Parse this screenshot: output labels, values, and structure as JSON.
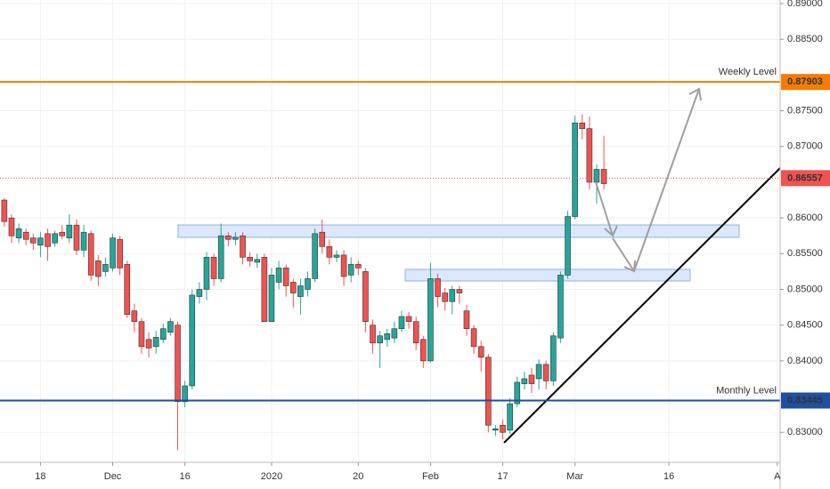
{
  "chart_data": {
    "type": "candlestick",
    "open": [
      0.8625,
      0.86,
      0.8572,
      0.858,
      0.8572,
      0.8562,
      0.8578,
      0.8565,
      0.858,
      0.8572,
      0.859,
      0.8555,
      0.8578,
      0.854,
      0.8525,
      0.853,
      0.857,
      0.8535,
      0.847,
      0.8455,
      0.843,
      0.842,
      0.843,
      0.844,
      0.845,
      0.8343,
      0.8365,
      0.849,
      0.85,
      0.8545,
      0.8515,
      0.8575,
      0.857,
      0.8575,
      0.8545,
      0.8538,
      0.8545,
      0.8455,
      0.851,
      0.853,
      0.851,
      0.849,
      0.85,
      0.8515,
      0.858,
      0.856,
      0.8545,
      0.8548,
      0.852,
      0.8535,
      0.8525,
      0.845,
      0.8425,
      0.843,
      0.8432,
      0.8445,
      0.8462,
      0.8455,
      0.843,
      0.84,
      0.8515,
      0.8495,
      0.8483,
      0.85,
      0.847,
      0.8445,
      0.842,
      0.8405,
      0.8303,
      0.831,
      0.8303,
      0.834,
      0.8368,
      0.838,
      0.8375,
      0.8395,
      0.8372,
      0.8432,
      0.852,
      0.8602,
      0.8733,
      0.8725,
      0.865,
      0.8668
    ],
    "high": [
      0.8628,
      0.8605,
      0.8592,
      0.8585,
      0.8578,
      0.858,
      0.8585,
      0.8582,
      0.859,
      0.8605,
      0.8598,
      0.859,
      0.8582,
      0.8548,
      0.8545,
      0.8578,
      0.8575,
      0.854,
      0.848,
      0.846,
      0.844,
      0.8442,
      0.8452,
      0.846,
      0.8455,
      0.8372,
      0.85,
      0.851,
      0.8552,
      0.855,
      0.8592,
      0.858,
      0.858,
      0.858,
      0.8552,
      0.855,
      0.855,
      0.853,
      0.854,
      0.8535,
      0.8515,
      0.8515,
      0.8525,
      0.8585,
      0.8598,
      0.857,
      0.8555,
      0.8555,
      0.8545,
      0.854,
      0.853,
      0.8458,
      0.8442,
      0.8445,
      0.8455,
      0.847,
      0.8468,
      0.8462,
      0.8435,
      0.8537,
      0.8522,
      0.8502,
      0.8505,
      0.8505,
      0.8478,
      0.845,
      0.8428,
      0.841,
      0.831,
      0.8318,
      0.8348,
      0.8378,
      0.8385,
      0.839,
      0.8402,
      0.84,
      0.844,
      0.8525,
      0.861,
      0.8743,
      0.8745,
      0.8742,
      0.8675,
      0.8715
    ],
    "low": [
      0.8588,
      0.8565,
      0.8565,
      0.8562,
      0.8555,
      0.8545,
      0.854,
      0.856,
      0.857,
      0.8565,
      0.8548,
      0.8545,
      0.8512,
      0.8505,
      0.8518,
      0.8525,
      0.852,
      0.846,
      0.844,
      0.841,
      0.8405,
      0.841,
      0.8425,
      0.8435,
      0.8275,
      0.8335,
      0.836,
      0.848,
      0.8485,
      0.8505,
      0.851,
      0.856,
      0.8562,
      0.8535,
      0.8532,
      0.853,
      0.8455,
      0.8455,
      0.85,
      0.849,
      0.8475,
      0.8465,
      0.849,
      0.851,
      0.855,
      0.8535,
      0.8538,
      0.8505,
      0.851,
      0.852,
      0.844,
      0.841,
      0.839,
      0.842,
      0.8425,
      0.844,
      0.8445,
      0.8415,
      0.839,
      0.8398,
      0.8475,
      0.847,
      0.8465,
      0.848,
      0.8435,
      0.841,
      0.8385,
      0.83,
      0.8295,
      0.829,
      0.8298,
      0.8335,
      0.836,
      0.8355,
      0.836,
      0.836,
      0.8365,
      0.8425,
      0.8515,
      0.8598,
      0.871,
      0.864,
      0.862,
      0.864
    ],
    "close": [
      0.8595,
      0.8575,
      0.8585,
      0.857,
      0.8565,
      0.8572,
      0.856,
      0.8578,
      0.8575,
      0.859,
      0.8555,
      0.858,
      0.852,
      0.8518,
      0.8535,
      0.8572,
      0.853,
      0.8465,
      0.8455,
      0.842,
      0.8418,
      0.8433,
      0.8445,
      0.8455,
      0.8343,
      0.8365,
      0.8492,
      0.85,
      0.8545,
      0.8515,
      0.8575,
      0.857,
      0.8573,
      0.8545,
      0.854,
      0.8542,
      0.8455,
      0.852,
      0.853,
      0.8505,
      0.8495,
      0.8505,
      0.8515,
      0.8578,
      0.856,
      0.8545,
      0.8548,
      0.8518,
      0.8535,
      0.853,
      0.8455,
      0.8425,
      0.8435,
      0.8438,
      0.8445,
      0.8462,
      0.8455,
      0.8425,
      0.84,
      0.8515,
      0.849,
      0.8483,
      0.85,
      0.8495,
      0.8445,
      0.842,
      0.8405,
      0.831,
      0.8305,
      0.83,
      0.834,
      0.837,
      0.8375,
      0.8368,
      0.8395,
      0.8372,
      0.8435,
      0.852,
      0.8602,
      0.8733,
      0.8725,
      0.865,
      0.8668,
      0.8648
    ],
    "up_color": "#26a69a",
    "down_color": "#ef5350",
    "ylim": [
      0.8258,
      0.8905
    ],
    "yticks": [
      {
        "value": 0.89,
        "label": "0.89000"
      },
      {
        "value": 0.885,
        "label": "0.88500"
      },
      {
        "value": 0.875,
        "label": "0.87500"
      },
      {
        "value": 0.87,
        "label": "0.87000"
      },
      {
        "value": 0.86,
        "label": "0.86000"
      },
      {
        "value": 0.855,
        "label": "0.85500"
      },
      {
        "value": 0.85,
        "label": "0.85000"
      },
      {
        "value": 0.845,
        "label": "0.84500"
      },
      {
        "value": 0.84,
        "label": "0.84000"
      },
      {
        "value": 0.83,
        "label": "0.83000"
      }
    ],
    "xlim": [
      -0.6,
      107.4
    ],
    "xticks": [
      {
        "value": 5,
        "label": "18"
      },
      {
        "value": 15,
        "label": "Dec"
      },
      {
        "value": 25,
        "label": "16"
      },
      {
        "value": 37,
        "label": "2020"
      },
      {
        "value": 49,
        "label": "20"
      },
      {
        "value": 59,
        "label": "Feb"
      },
      {
        "value": 69,
        "label": "17"
      },
      {
        "value": 79,
        "label": "Mar"
      },
      {
        "value": 92,
        "label": "16"
      },
      {
        "value": 107,
        "label": "A"
      }
    ],
    "levels": [
      {
        "name": "Weekly Level",
        "value": 0.87903,
        "value_label": "0.87903",
        "color": "#f57c00"
      },
      {
        "name": "Monthly Level",
        "value": 0.83445,
        "value_label": "0.83445",
        "color": "#1e4fa0"
      }
    ],
    "last_price": {
      "value": 0.86557,
      "value_label": "0.86557",
      "color": "#ef5350"
    }
  }
}
